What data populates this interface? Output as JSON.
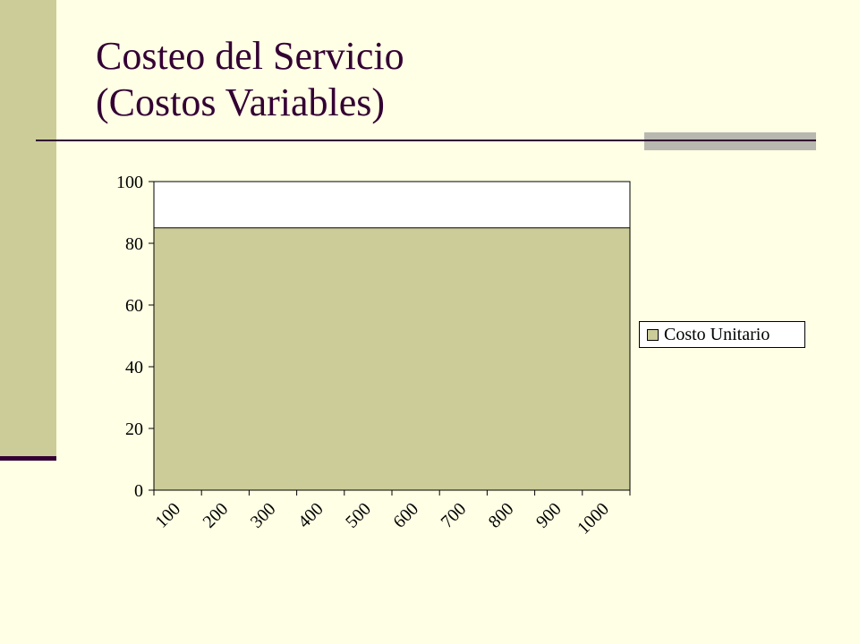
{
  "slide": {
    "title_line1": "Costeo del Servicio",
    "title_line2": "(Costos Variables)"
  },
  "colors": {
    "background": "#FFFFE5",
    "accent": "#CCCC99",
    "title": "#330033",
    "series_fill": "#CCCC99"
  },
  "chart_data": {
    "type": "area",
    "categories": [
      "100",
      "200",
      "300",
      "400",
      "500",
      "600",
      "700",
      "800",
      "900",
      "1000"
    ],
    "series": [
      {
        "name": "Costo Unitario",
        "values": [
          85,
          85,
          85,
          85,
          85,
          85,
          85,
          85,
          85,
          85
        ]
      }
    ],
    "ylim": [
      0,
      100
    ],
    "yticks": [
      0,
      20,
      40,
      60,
      80,
      100
    ],
    "legend": "right",
    "grid": false
  }
}
